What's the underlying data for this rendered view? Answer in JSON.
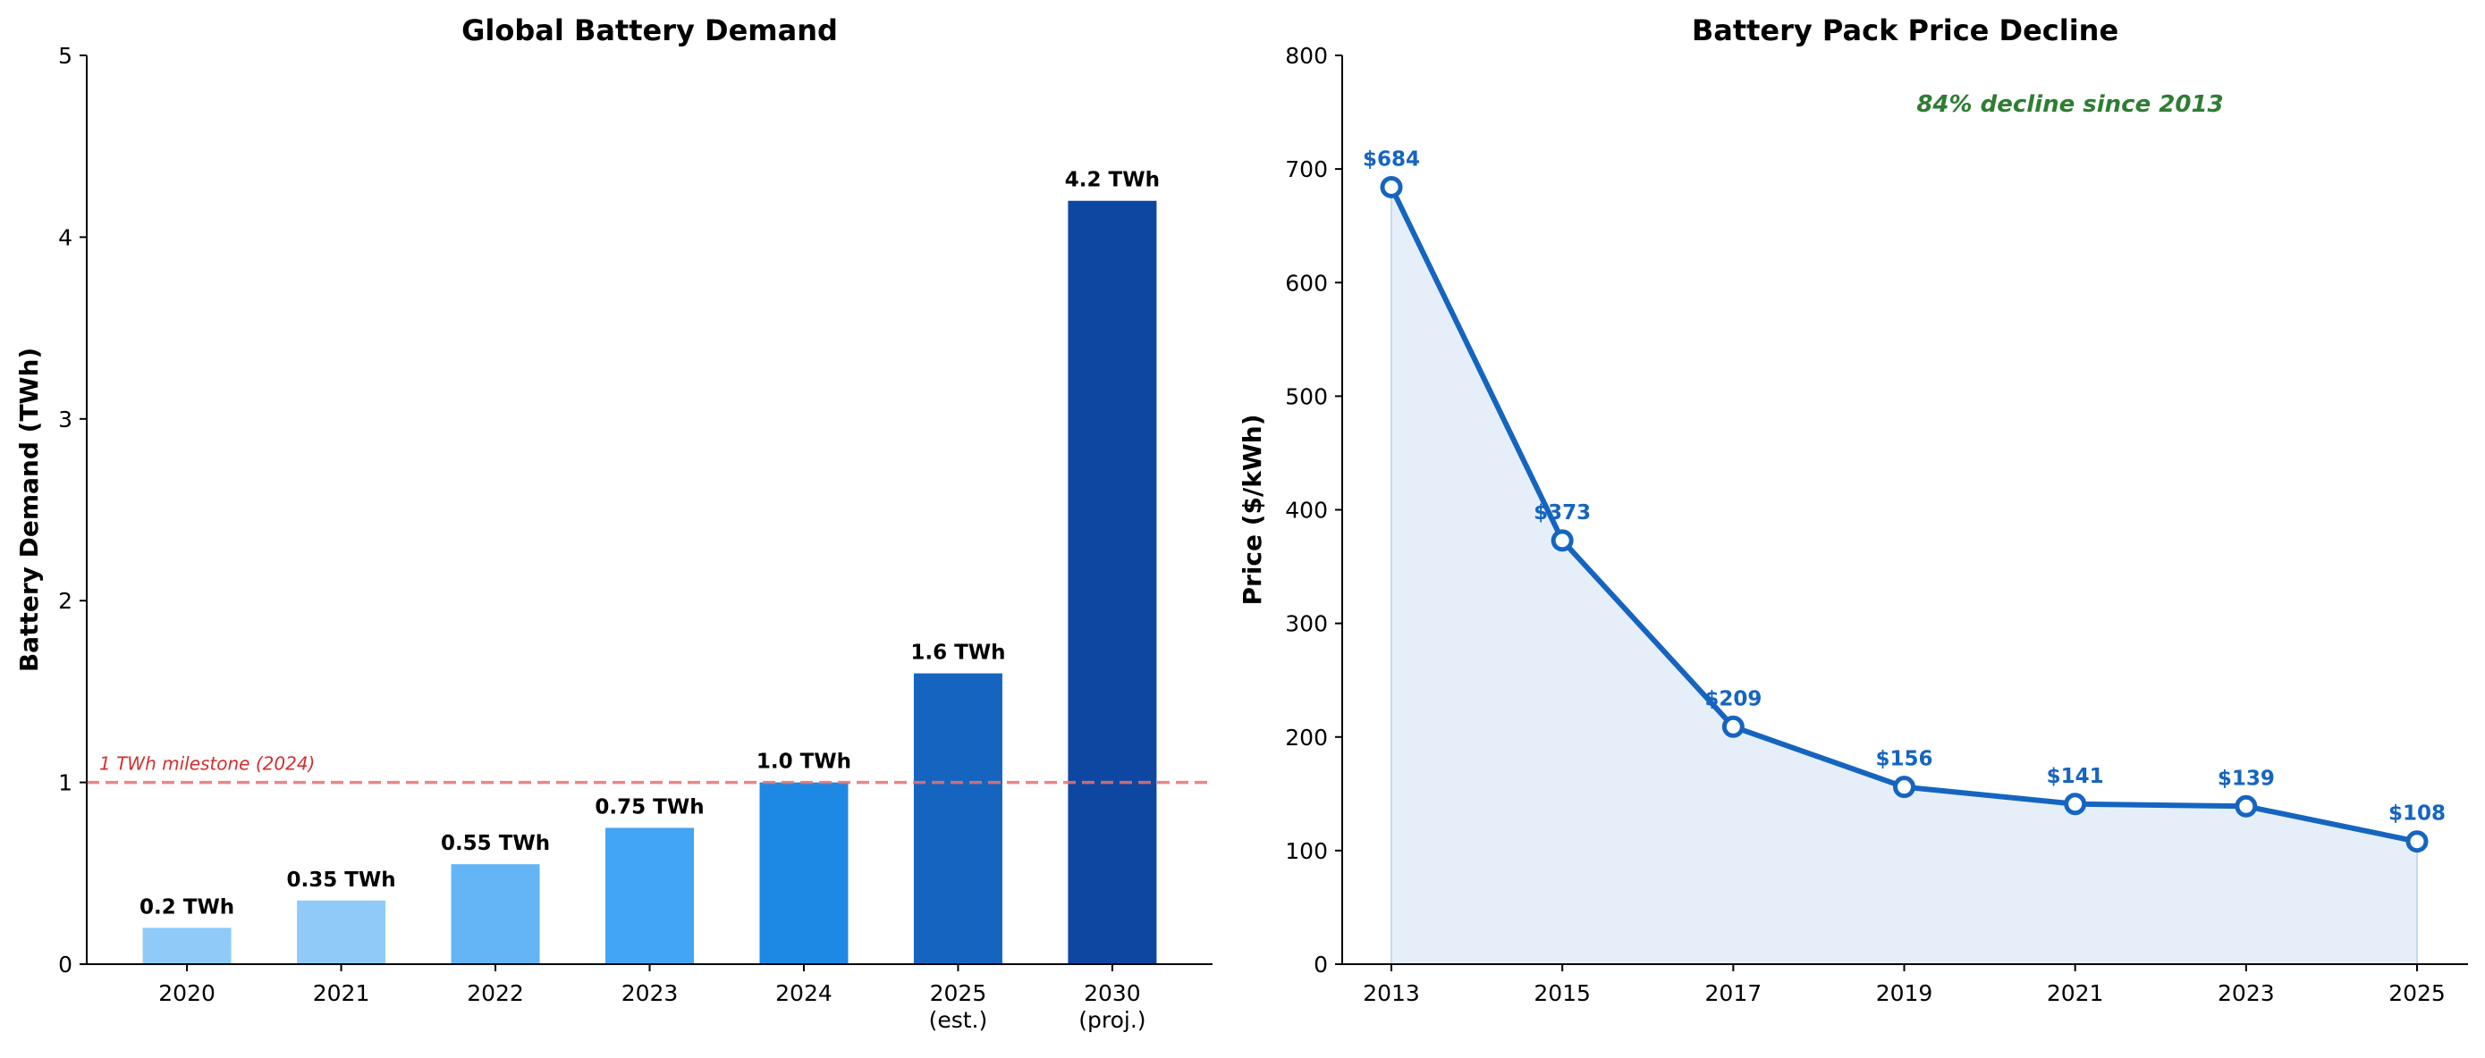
{
  "chart_data": [
    {
      "type": "bar",
      "title": "Global Battery Demand",
      "xlabel": "",
      "ylabel": "Battery Demand (TWh)",
      "ylim": [
        0,
        5
      ],
      "yticks": [
        "0",
        "1",
        "2",
        "3",
        "4",
        "5"
      ],
      "categories": [
        "2020",
        "2021",
        "2022",
        "2023",
        "2024",
        "2025\n(est.)",
        "2030\n(proj.)"
      ],
      "values": [
        0.2,
        0.35,
        0.55,
        0.75,
        1.0,
        1.6,
        4.2
      ],
      "data_labels": [
        "0.2 TWh",
        "0.35 TWh",
        "0.55 TWh",
        "0.75 TWh",
        "1.0 TWh",
        "1.6 TWh",
        "4.2 TWh"
      ],
      "colors": [
        "#90caf9",
        "#90caf9",
        "#64b5f6",
        "#42a5f5",
        "#1e88e5",
        "#1565c0",
        "#0d47a1"
      ],
      "reference_line": {
        "value": 1,
        "label": "1 TWh milestone (2024)",
        "color": "#e57373",
        "style": "dashed"
      },
      "grid": false
    },
    {
      "type": "area",
      "title": "Battery Pack Price Decline",
      "xlabel": "",
      "ylabel": "Price ($/kWh)",
      "ylim": [
        0,
        800
      ],
      "yticks": [
        "0",
        "100",
        "200",
        "300",
        "400",
        "500",
        "600",
        "700",
        "800"
      ],
      "x": [
        "2013",
        "2015",
        "2017",
        "2019",
        "2021",
        "2023",
        "2025"
      ],
      "values": [
        684,
        373,
        209,
        156,
        141,
        139,
        108
      ],
      "data_labels": [
        "$684",
        "$373",
        "$209",
        "$156",
        "$141",
        "$139",
        "$108"
      ],
      "line_color": "#1565c0",
      "fill_color": "#e6eff9",
      "annotation": {
        "text": "84% decline since 2013",
        "color": "#2e7d32"
      },
      "grid": false
    }
  ]
}
